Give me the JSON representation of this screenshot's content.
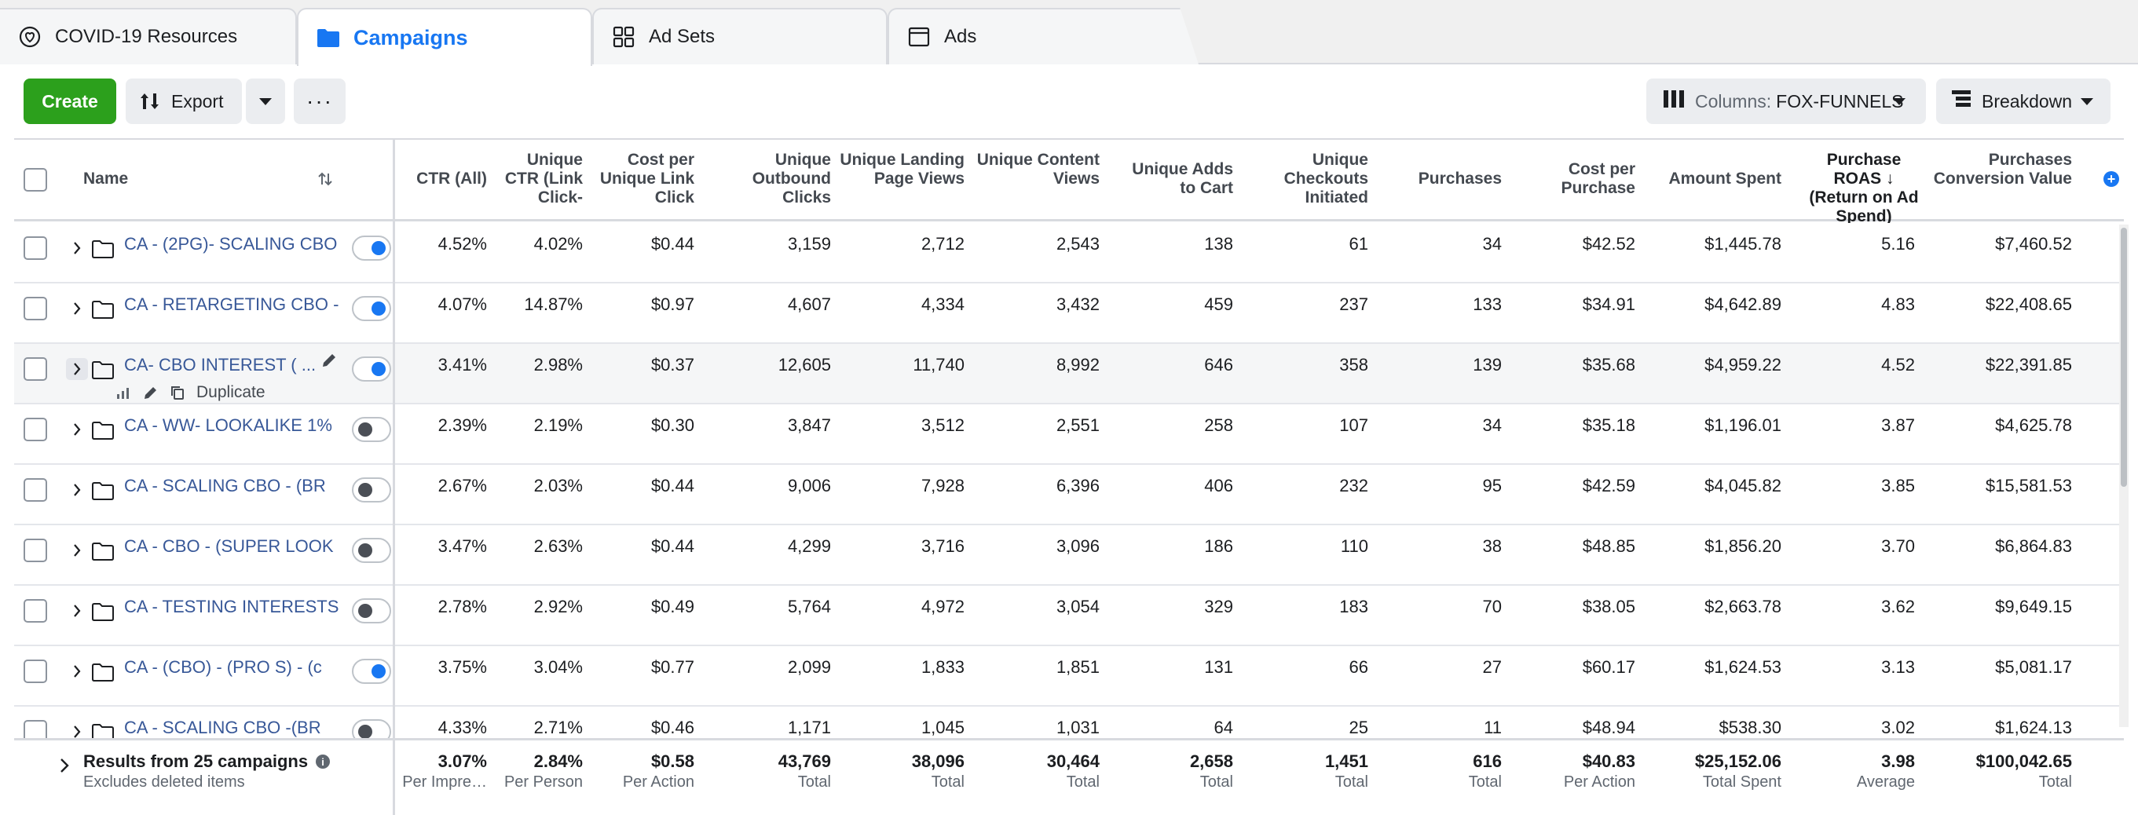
{
  "tabs": [
    {
      "label": "COVID-19 Resources",
      "icon": "covid-resources-icon"
    },
    {
      "label": "Campaigns",
      "icon": "folder-icon",
      "active": true
    },
    {
      "label": "Ad Sets",
      "icon": "grid-icon"
    },
    {
      "label": "Ads",
      "icon": "ad-window-icon"
    }
  ],
  "toolbar": {
    "create_label": "Create",
    "export_label": "Export",
    "more_label": "···",
    "columns_label": "Columns:",
    "columns_value": "FOX-FUNNELS",
    "breakdown_label": "Breakdown"
  },
  "columns": {
    "name": "Name",
    "ctr_all": "CTR (All)",
    "unique_ctr": "Unique CTR (Link Click-",
    "cost_per_unique_link_click": "Cost per Unique Link Click",
    "unique_outbound_clicks": "Unique Outbound Clicks",
    "unique_landing_page_views": "Unique Landing Page Views",
    "unique_content_views": "Unique Content Views",
    "unique_adds_to_cart": "Unique Adds to Cart",
    "unique_checkouts_initiated": "Unique Checkouts Initiated",
    "purchases": "Purchases",
    "cost_per_purchase": "Cost per Purchase",
    "amount_spent": "Amount Spent",
    "purchase_roas": "Purchase ROAS ↓ (Return on Ad Spend)",
    "purchases_conversion_value": "Purchases Conversion Value"
  },
  "rows": [
    {
      "name": "CA - (2PG)- SCALING CBO",
      "on": true,
      "ctr": "4.52%",
      "uctr": "4.02%",
      "cpulc": "$0.44",
      "uoc": "3,159",
      "ulpv": "2,712",
      "ucv": "2,543",
      "uatc": "138",
      "uci": "61",
      "purch": "34",
      "cpp": "$42.52",
      "spent": "$1,445.78",
      "roas": "5.16",
      "pcv": "$7,460.52"
    },
    {
      "name": "CA - RETARGETING CBO - ",
      "on": true,
      "ctr": "4.07%",
      "uctr": "14.87%",
      "cpulc": "$0.97",
      "uoc": "4,607",
      "ulpv": "4,334",
      "ucv": "3,432",
      "uatc": "459",
      "uci": "237",
      "purch": "133",
      "cpp": "$34.91",
      "spent": "$4,642.89",
      "roas": "4.83",
      "pcv": "$22,408.65"
    },
    {
      "name": "CA- CBO INTEREST ( ...",
      "on": true,
      "hover": true,
      "ctr": "3.41%",
      "uctr": "2.98%",
      "cpulc": "$0.37",
      "uoc": "12,605",
      "ulpv": "11,740",
      "ucv": "8,992",
      "uatc": "646",
      "uci": "358",
      "purch": "139",
      "cpp": "$35.68",
      "spent": "$4,959.22",
      "roas": "4.52",
      "pcv": "$22,391.85"
    },
    {
      "name": "CA - WW- LOOKALIKE 1%",
      "on": false,
      "ctr": "2.39%",
      "uctr": "2.19%",
      "cpulc": "$0.30",
      "uoc": "3,847",
      "ulpv": "3,512",
      "ucv": "2,551",
      "uatc": "258",
      "uci": "107",
      "purch": "34",
      "cpp": "$35.18",
      "spent": "$1,196.01",
      "roas": "3.87",
      "pcv": "$4,625.78"
    },
    {
      "name": "CA - SCALING CBO - (BR",
      "on": false,
      "ctr": "2.67%",
      "uctr": "2.03%",
      "cpulc": "$0.44",
      "uoc": "9,006",
      "ulpv": "7,928",
      "ucv": "6,396",
      "uatc": "406",
      "uci": "232",
      "purch": "95",
      "cpp": "$42.59",
      "spent": "$4,045.82",
      "roas": "3.85",
      "pcv": "$15,581.53"
    },
    {
      "name": "CA - CBO - (SUPER LOOK",
      "on": false,
      "ctr": "3.47%",
      "uctr": "2.63%",
      "cpulc": "$0.44",
      "uoc": "4,299",
      "ulpv": "3,716",
      "ucv": "3,096",
      "uatc": "186",
      "uci": "110",
      "purch": "38",
      "cpp": "$48.85",
      "spent": "$1,856.20",
      "roas": "3.70",
      "pcv": "$6,864.83"
    },
    {
      "name": "CA - TESTING INTERESTS",
      "on": false,
      "ctr": "2.78%",
      "uctr": "2.92%",
      "cpulc": "$0.49",
      "uoc": "5,764",
      "ulpv": "4,972",
      "ucv": "3,054",
      "uatc": "329",
      "uci": "183",
      "purch": "70",
      "cpp": "$38.05",
      "spent": "$2,663.78",
      "roas": "3.62",
      "pcv": "$9,649.15"
    },
    {
      "name": "CA - (CBO) - (PRO S) - (c",
      "on": true,
      "ctr": "3.75%",
      "uctr": "3.04%",
      "cpulc": "$0.77",
      "uoc": "2,099",
      "ulpv": "1,833",
      "ucv": "1,851",
      "uatc": "131",
      "uci": "66",
      "purch": "27",
      "cpp": "$60.17",
      "spent": "$1,624.53",
      "roas": "3.13",
      "pcv": "$5,081.17"
    },
    {
      "name": "CA - SCALING CBO -(BR",
      "on": false,
      "ctr": "4.33%",
      "uctr": "2.71%",
      "cpulc": "$0.46",
      "uoc": "1,171",
      "ulpv": "1,045",
      "ucv": "1,031",
      "uatc": "64",
      "uci": "25",
      "purch": "11",
      "cpp": "$48.94",
      "spent": "$538.30",
      "roas": "3.02",
      "pcv": "$1,624.13"
    }
  ],
  "hover_actions": {
    "duplicate": "Duplicate"
  },
  "footer": {
    "title": "Results from 25 campaigns",
    "subtitle": "Excludes deleted items",
    "totals": {
      "ctr": {
        "value": "3.07%",
        "label": "Per Impre…"
      },
      "uctr": {
        "value": "2.84%",
        "label": "Per Person"
      },
      "cpulc": {
        "value": "$0.58",
        "label": "Per Action"
      },
      "uoc": {
        "value": "43,769",
        "label": "Total"
      },
      "ulpv": {
        "value": "38,096",
        "label": "Total"
      },
      "ucv": {
        "value": "30,464",
        "label": "Total"
      },
      "uatc": {
        "value": "2,658",
        "label": "Total"
      },
      "uci": {
        "value": "1,451",
        "label": "Total"
      },
      "purch": {
        "value": "616",
        "label": "Total"
      },
      "cpp": {
        "value": "$40.83",
        "label": "Per Action"
      },
      "spent": {
        "value": "$25,152.06",
        "label": "Total Spent"
      },
      "roas": {
        "value": "3.98",
        "label": "Average"
      },
      "pcv": {
        "value": "$100,042.65",
        "label": "Total"
      }
    }
  },
  "colors": {
    "accent": "#1877f2",
    "create": "#2ca01c",
    "link": "#385898"
  }
}
